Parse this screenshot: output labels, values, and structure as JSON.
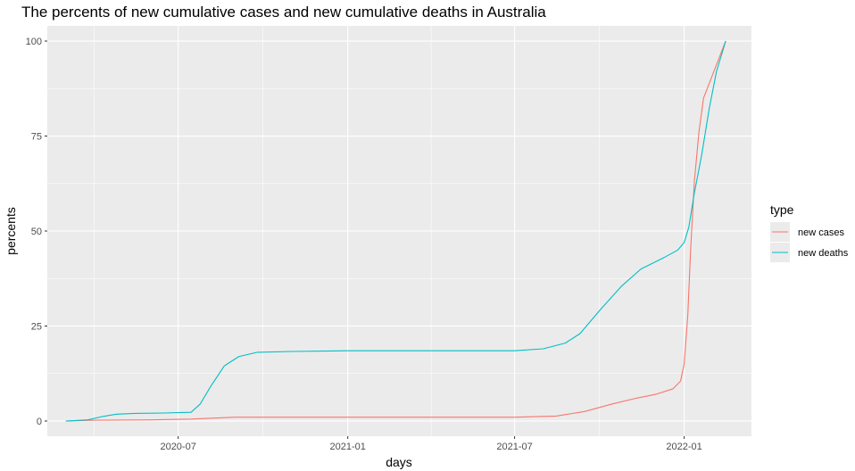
{
  "chart_data": {
    "type": "line",
    "title": "The percents of new cumulative cases and new cumulative deaths in Australia",
    "xlabel": "days",
    "ylabel": "percents",
    "x_ticks": [
      "2020-07",
      "2021-01",
      "2021-07",
      "2022-01"
    ],
    "y_ticks": [
      0,
      25,
      50,
      75,
      100
    ],
    "xlim": [
      "2020-02-10",
      "2022-03-15"
    ],
    "ylim": [
      -4,
      104
    ],
    "grid": true,
    "legend": {
      "title": "type",
      "position": "right"
    },
    "series": [
      {
        "name": "new cases",
        "color": "#F8766D",
        "points": [
          [
            "2020-03-01",
            0
          ],
          [
            "2020-04-01",
            0.2
          ],
          [
            "2020-06-01",
            0.3
          ],
          [
            "2020-07-15",
            0.5
          ],
          [
            "2020-09-01",
            1.0
          ],
          [
            "2021-01-01",
            1.0
          ],
          [
            "2021-07-01",
            1.0
          ],
          [
            "2021-08-15",
            1.3
          ],
          [
            "2021-09-15",
            2.5
          ],
          [
            "2021-10-15",
            4.5
          ],
          [
            "2021-11-10",
            6.0
          ],
          [
            "2021-12-01",
            7.0
          ],
          [
            "2021-12-20",
            8.5
          ],
          [
            "2021-12-28",
            10.5
          ],
          [
            "2022-01-01",
            15
          ],
          [
            "2022-01-05",
            28
          ],
          [
            "2022-01-08",
            45
          ],
          [
            "2022-01-12",
            63
          ],
          [
            "2022-01-17",
            76
          ],
          [
            "2022-01-22",
            85
          ],
          [
            "2022-01-30",
            90
          ],
          [
            "2022-02-07",
            95
          ],
          [
            "2022-02-15",
            100
          ]
        ]
      },
      {
        "name": "new deaths",
        "color": "#00BFC4",
        "points": [
          [
            "2020-03-01",
            0
          ],
          [
            "2020-03-25",
            0.3
          ],
          [
            "2020-04-10",
            1.2
          ],
          [
            "2020-04-25",
            1.8
          ],
          [
            "2020-05-15",
            2.0
          ],
          [
            "2020-06-15",
            2.1
          ],
          [
            "2020-07-15",
            2.3
          ],
          [
            "2020-07-25",
            4.5
          ],
          [
            "2020-08-05",
            9.0
          ],
          [
            "2020-08-20",
            14.5
          ],
          [
            "2020-09-05",
            17.0
          ],
          [
            "2020-09-25",
            18.1
          ],
          [
            "2020-11-01",
            18.3
          ],
          [
            "2021-01-01",
            18.5
          ],
          [
            "2021-07-01",
            18.5
          ],
          [
            "2021-08-01",
            19.0
          ],
          [
            "2021-08-25",
            20.5
          ],
          [
            "2021-09-10",
            23.0
          ],
          [
            "2021-10-01",
            29.0
          ],
          [
            "2021-10-25",
            35.5
          ],
          [
            "2021-11-15",
            40.0
          ],
          [
            "2021-12-10",
            43.0
          ],
          [
            "2021-12-25",
            45.0
          ],
          [
            "2022-01-01",
            47.0
          ],
          [
            "2022-01-06",
            51.0
          ],
          [
            "2022-01-12",
            60.0
          ],
          [
            "2022-01-20",
            70.0
          ],
          [
            "2022-01-28",
            82.0
          ],
          [
            "2022-02-05",
            92.0
          ],
          [
            "2022-02-15",
            100
          ]
        ]
      }
    ]
  }
}
